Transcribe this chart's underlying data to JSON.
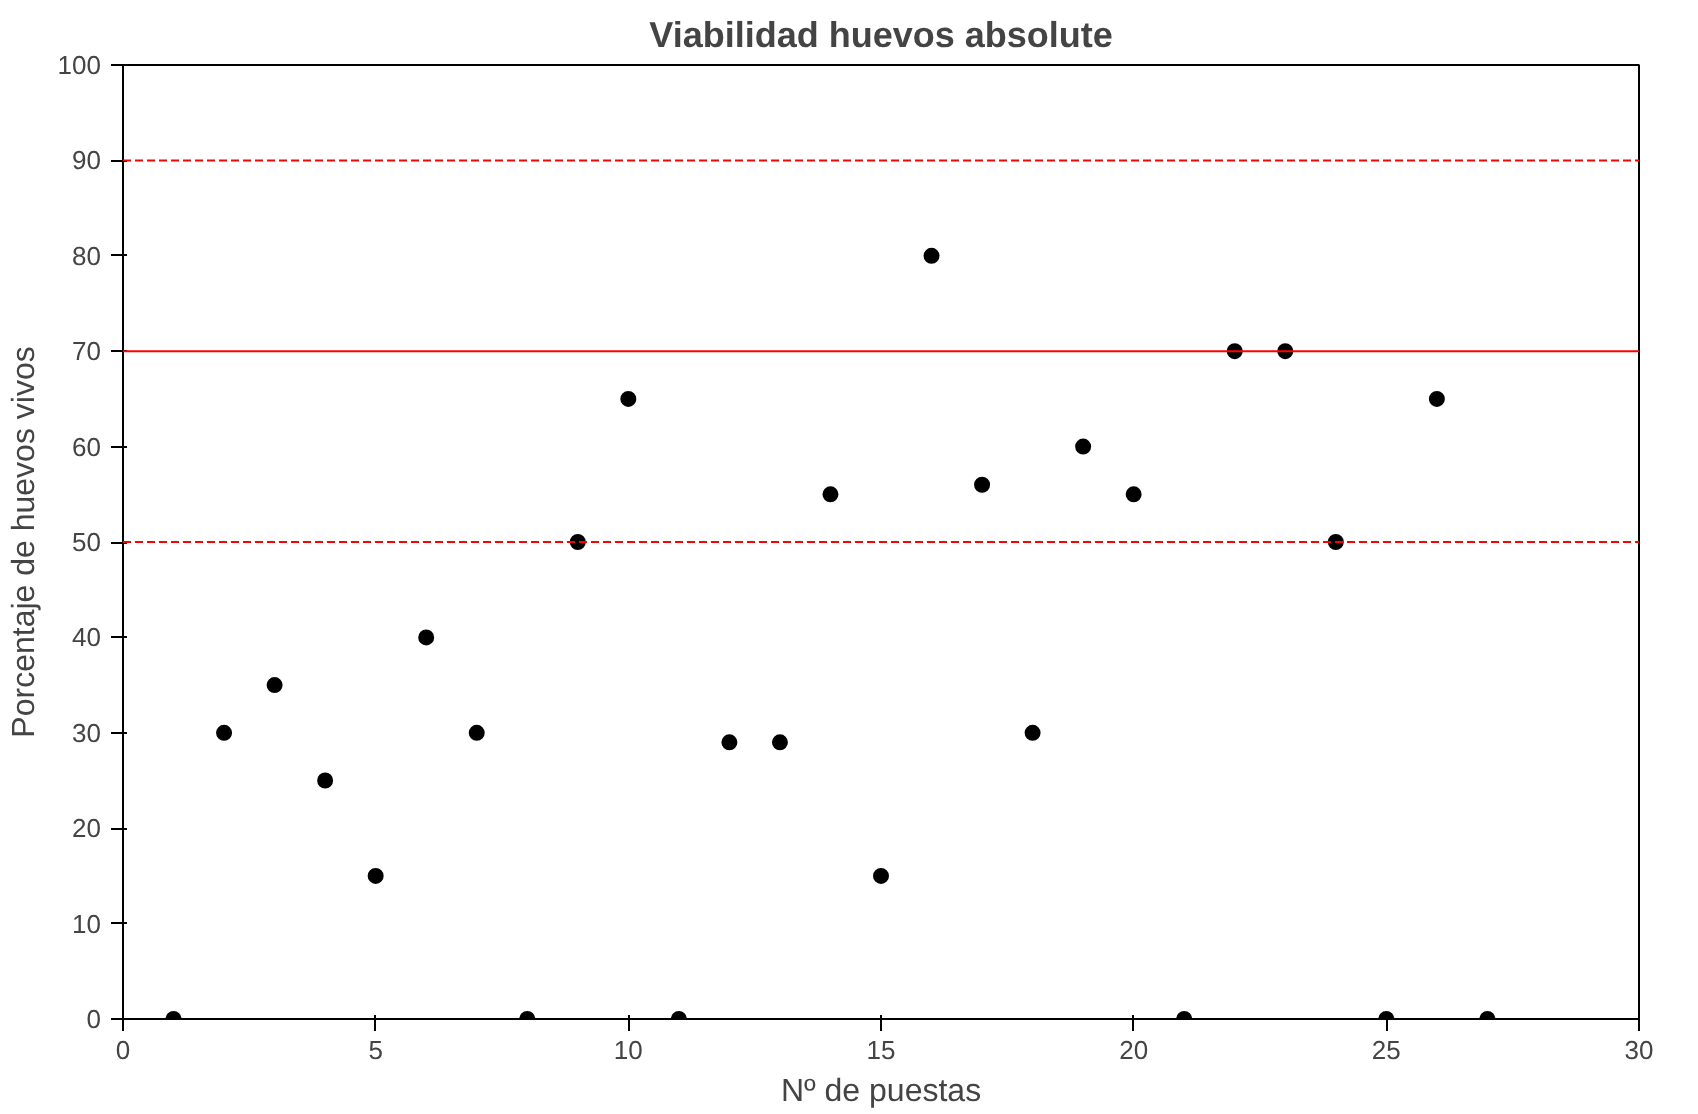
{
  "chart_data": {
    "type": "scatter",
    "title": "Viabilidad huevos absolute",
    "xlabel": "Nº de puestas",
    "ylabel": "Porcentaje de huevos vivos",
    "x": [
      1,
      2,
      3,
      4,
      5,
      6,
      7,
      8,
      9,
      10,
      11,
      12,
      13,
      14,
      15,
      16,
      17,
      18,
      19,
      20,
      21,
      22,
      23,
      24,
      25,
      26,
      27
    ],
    "series": [
      {
        "color": "#000000",
        "values": [
          0,
          30,
          35,
          25,
          15,
          40,
          30,
          0,
          50,
          65,
          0,
          29,
          29,
          55,
          15,
          80,
          56,
          30,
          60,
          55,
          0,
          70,
          70,
          50,
          0,
          65,
          0
        ]
      }
    ],
    "xlim": [
      0,
      30
    ],
    "xticks": [
      0,
      5,
      10,
      15,
      20,
      25,
      30
    ],
    "ylim": [
      0,
      100
    ],
    "yticks": [
      0,
      10,
      20,
      30,
      40,
      50,
      60,
      70,
      80,
      90,
      100
    ],
    "ref_lines": [
      {
        "axis": "y",
        "value": 90,
        "color": "#ff0000",
        "line_style": "dashed"
      },
      {
        "axis": "y",
        "value": 70,
        "color": "#ff0000",
        "line_style": "solid"
      },
      {
        "axis": "y",
        "value": 50,
        "color": "#ff0000",
        "line_style": "dashed"
      }
    ],
    "marker": "circle",
    "grid": false
  }
}
